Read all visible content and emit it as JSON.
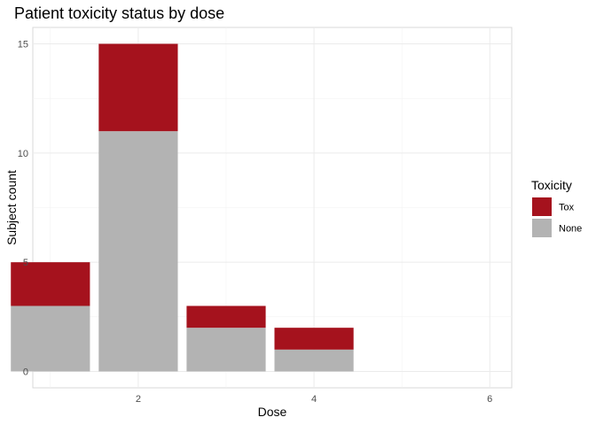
{
  "chart_data": {
    "type": "bar",
    "stacked": true,
    "title": "Patient toxicity status by dose",
    "xlabel": "Dose",
    "ylabel": "Subject count",
    "x": [
      1,
      2,
      3,
      4
    ],
    "series": [
      {
        "name": "None",
        "values": [
          3,
          11,
          2,
          1
        ],
        "color": "#b3b3b3"
      },
      {
        "name": "Tox",
        "values": [
          2,
          4,
          1,
          1
        ],
        "color": "#a5121d"
      }
    ],
    "xlim": [
      0.8,
      6.25
    ],
    "ylim": [
      -0.75,
      15.75
    ],
    "x_ticks": [
      2,
      4,
      6
    ],
    "y_ticks": [
      0,
      5,
      10,
      15
    ],
    "grid": true,
    "legend": {
      "title": "Toxicity",
      "placement": "right",
      "items": [
        {
          "label": "Tox",
          "color": "#a5121d"
        },
        {
          "label": "None",
          "color": "#b3b3b3"
        }
      ]
    }
  }
}
